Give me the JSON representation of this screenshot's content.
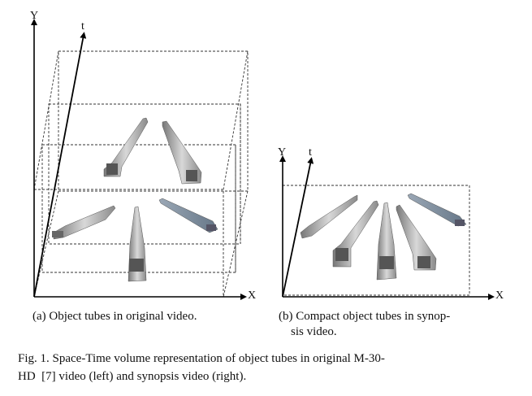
{
  "left_diagram": {
    "axes": {
      "y": "Y",
      "t": "t",
      "x": "X"
    },
    "caption": "(a) Object tubes in original video."
  },
  "right_diagram": {
    "axes": {
      "y": "Y",
      "t": "t",
      "x": "X"
    },
    "caption_line1": "(b) Compact object tubes in synop-",
    "caption_line2": "sis video."
  },
  "figure_caption": {
    "line1": "Fig. 1.  Space-Time volume representation of object tubes in original M-30-",
    "line2": "HD  [7] video (left) and synopsis video (right)."
  }
}
